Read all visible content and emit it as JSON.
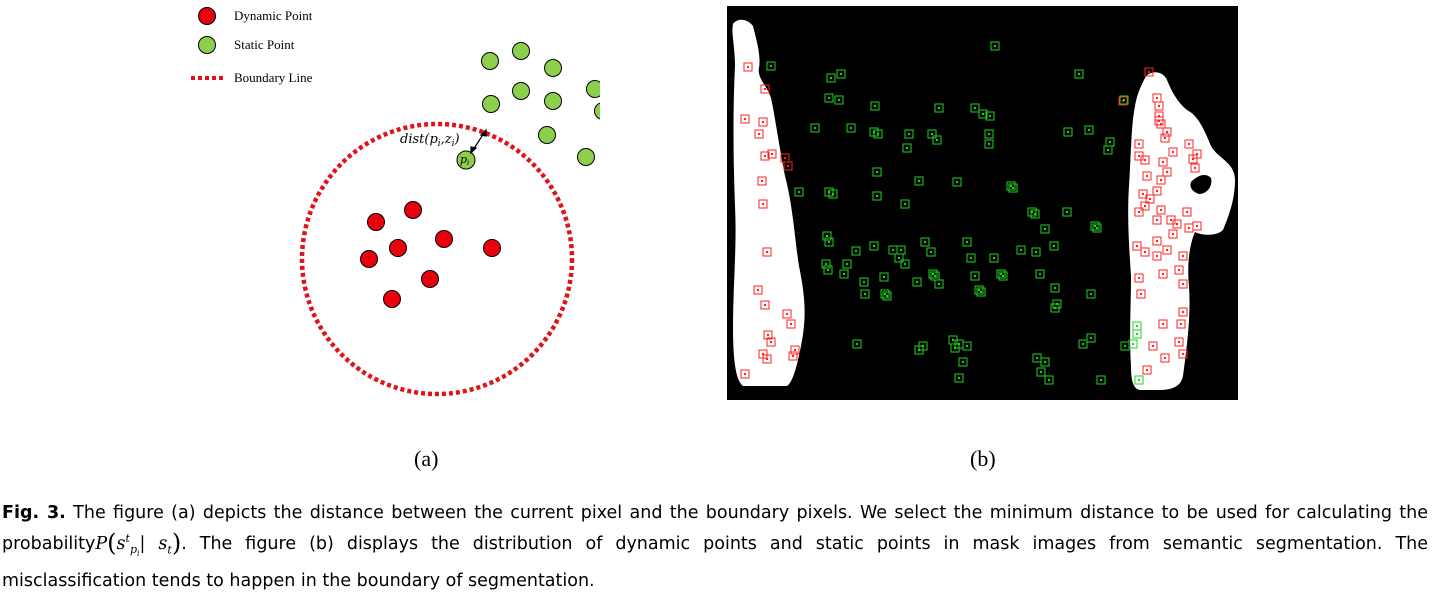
{
  "figure_a": {
    "legend": {
      "dynamic_label": "Dynamic Point",
      "static_label": "Static Point",
      "boundary_label": "Boundary Line"
    },
    "distance_label": "dist(p",
    "distance_label_sub_i": "i",
    "distance_label_mid": ",z",
    "distance_label_end": ")",
    "point_label": "p",
    "point_label_sub": "i",
    "colors": {
      "dynamic": "#e8000d",
      "static": "#8ccf4d",
      "boundary": "#e0121a"
    }
  },
  "figure_b": {
    "colors": {
      "background": "#000000",
      "mask": "#ffffff",
      "dynamic": "#ff2020",
      "static": "#1fd31f"
    }
  },
  "sublabels": {
    "a": "(a)",
    "b": "(b)"
  },
  "caption": {
    "fig_label": "Fig. 3.",
    "text_1": " The figure (a) depicts the distance between the current pixel and the boundary pixels. We select the minimum distance to be used for calculating the probability",
    "text_2": ". The figure (b) displays the distribution of dynamic points and static points in mask images from semantic segmentation. The misclassification tends to happen in the boundary of segmentation."
  }
}
